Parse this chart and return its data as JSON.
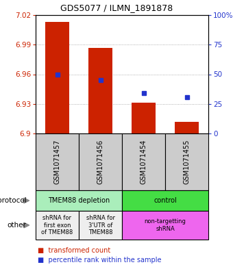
{
  "title": "GDS5077 / ILMN_1891878",
  "samples": [
    "GSM1071457",
    "GSM1071456",
    "GSM1071454",
    "GSM1071455"
  ],
  "bar_values": [
    7.013,
    6.987,
    6.931,
    6.912
  ],
  "bar_bottom": 6.9,
  "percentile_values": [
    6.96,
    6.954,
    6.941,
    6.937
  ],
  "ylim": [
    6.9,
    7.02
  ],
  "yticks": [
    6.9,
    6.93,
    6.96,
    6.99,
    7.02
  ],
  "ytick_labels": [
    "6.9",
    "6.93",
    "6.96",
    "6.99",
    "7.02"
  ],
  "right_ytick_pcts": [
    0,
    25,
    50,
    75,
    100
  ],
  "right_ytick_labels": [
    "0",
    "25",
    "50",
    "75",
    "100%"
  ],
  "bar_color": "#cc2200",
  "percentile_color": "#2233cc",
  "grid_color": "#999999",
  "protocol_row": [
    {
      "label": "TMEM88 depletion",
      "color": "#aaeebb",
      "span": [
        0,
        2
      ]
    },
    {
      "label": "control",
      "color": "#44dd44",
      "span": [
        2,
        4
      ]
    }
  ],
  "other_row": [
    {
      "label": "shRNA for\nfirst exon\nof TMEM88",
      "color": "#eeeeee",
      "span": [
        0,
        1
      ]
    },
    {
      "label": "shRNA for\n3'UTR of\nTMEM88",
      "color": "#eeeeee",
      "span": [
        1,
        2
      ]
    },
    {
      "label": "non-targetting\nshRNA",
      "color": "#ee66ee",
      "span": [
        2,
        4
      ]
    }
  ],
  "legend_red_label": "transformed count",
  "legend_blue_label": "percentile rank within the sample",
  "sample_bg_color": "#cccccc",
  "background_color": "#ffffff"
}
